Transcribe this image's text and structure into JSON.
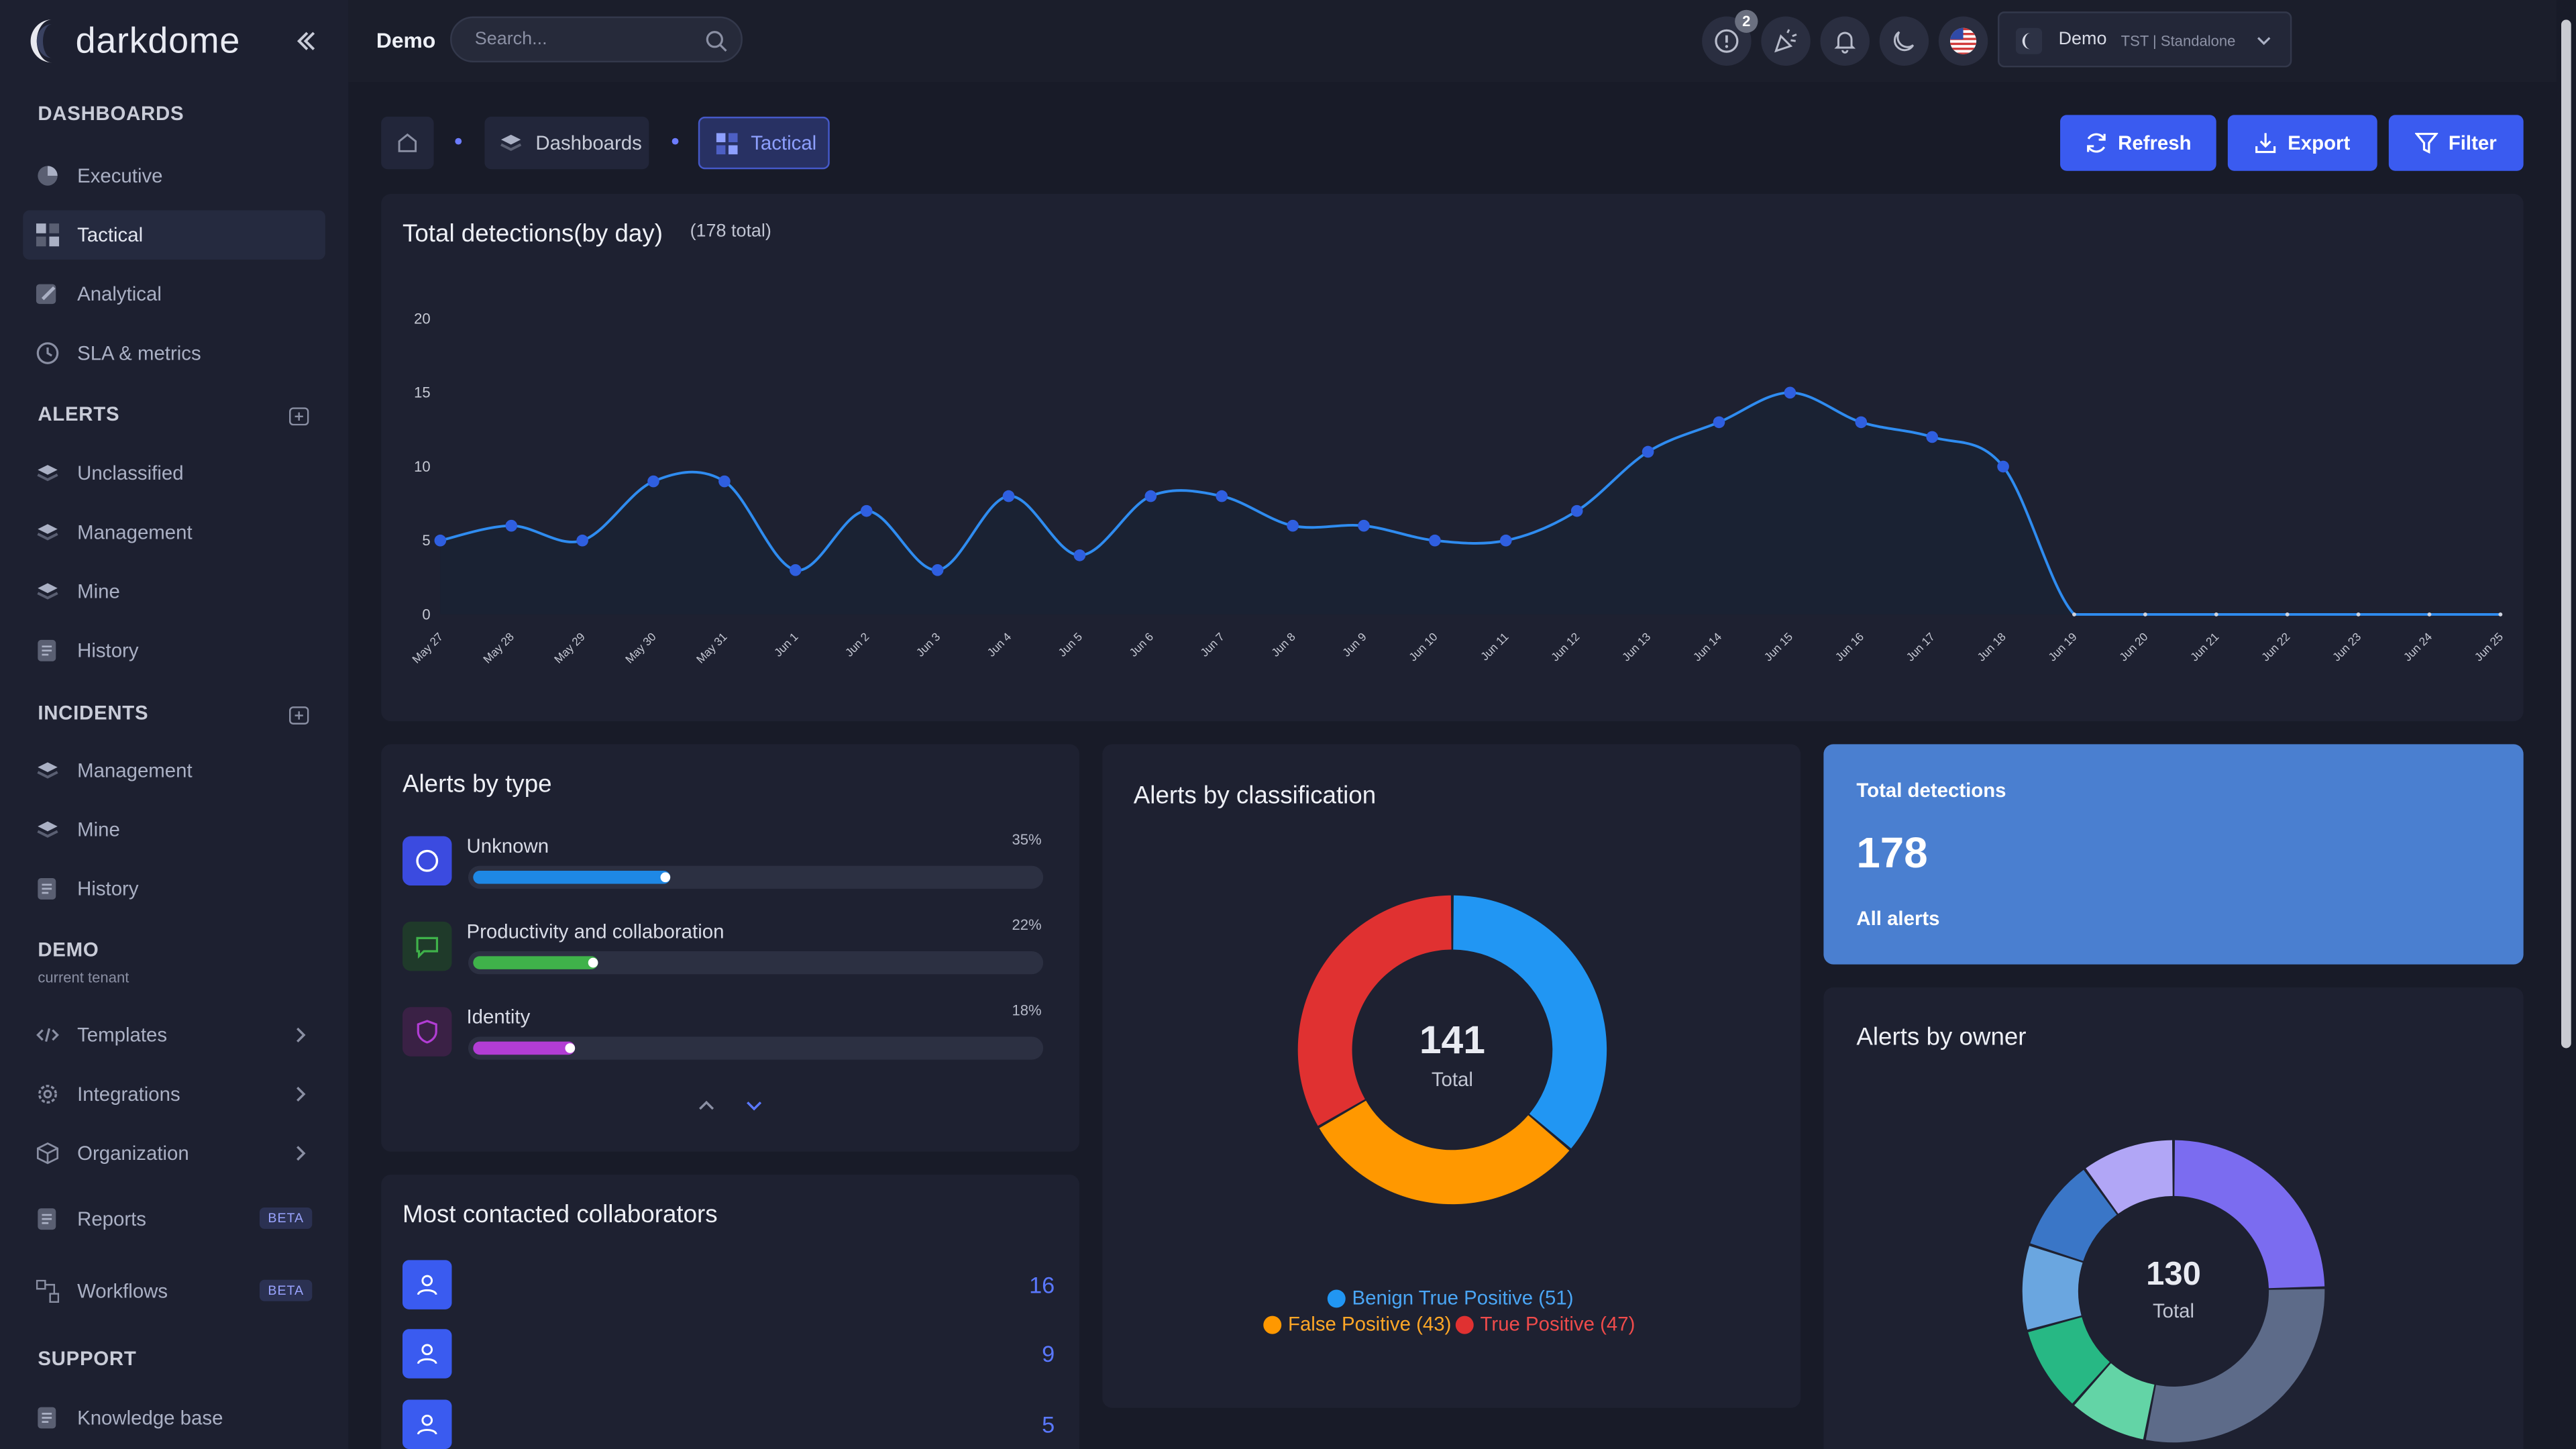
{
  "brand": {
    "name": "darkdome"
  },
  "sidebar": {
    "dashboards_title": "DASHBOARDS",
    "dashboards": [
      {
        "label": "Executive"
      },
      {
        "label": "Tactical"
      },
      {
        "label": "Analytical"
      },
      {
        "label": "SLA & metrics"
      }
    ],
    "alerts_title": "ALERTS",
    "alerts": [
      {
        "label": "Unclassified"
      },
      {
        "label": "Management"
      },
      {
        "label": "Mine"
      },
      {
        "label": "History"
      }
    ],
    "incidents_title": "INCIDENTS",
    "incidents": [
      {
        "label": "Management"
      },
      {
        "label": "Mine"
      },
      {
        "label": "History"
      }
    ],
    "tenant_title": "DEMO",
    "tenant_sub": "current tenant",
    "tenant_items": [
      {
        "label": "Templates"
      },
      {
        "label": "Integrations"
      },
      {
        "label": "Organization"
      },
      {
        "label": "Reports",
        "badge": "BETA"
      },
      {
        "label": "Workflows",
        "badge": "BETA"
      }
    ],
    "support_title": "SUPPORT",
    "support": [
      {
        "label": "Knowledge base"
      }
    ]
  },
  "topbar": {
    "title": "Demo",
    "search_placeholder": "Search...",
    "notification_count": "2",
    "tenant_name": "Demo",
    "tenant_meta": "TST | Standalone"
  },
  "breadcrumb": {
    "dashboards": "Dashboards",
    "tactical": "Tactical"
  },
  "actions": {
    "refresh": "Refresh",
    "export": "Export",
    "filter": "Filter"
  },
  "detections_chart": {
    "title": "Total detections(by day)",
    "total_note": "(178 total)"
  },
  "chart_data": [
    {
      "type": "area",
      "title": "Total detections(by day)",
      "x": [
        "May 27",
        "May 28",
        "May 29",
        "May 30",
        "May 31",
        "Jun 1",
        "Jun 2",
        "Jun 3",
        "Jun 4",
        "Jun 5",
        "Jun 6",
        "Jun 7",
        "Jun 8",
        "Jun 9",
        "Jun 10",
        "Jun 11",
        "Jun 12",
        "Jun 13",
        "Jun 14",
        "Jun 15",
        "Jun 16",
        "Jun 17",
        "Jun 18",
        "Jun 19",
        "Jun 20",
        "Jun 21",
        "Jun 22",
        "Jun 23",
        "Jun 24",
        "Jun 25"
      ],
      "values": [
        5,
        6,
        5,
        9,
        9,
        3,
        7,
        3,
        8,
        4,
        8,
        8,
        6,
        6,
        5,
        5,
        7,
        11,
        13,
        15,
        13,
        12,
        10,
        0,
        0,
        0,
        0,
        0,
        0,
        0
      ],
      "yticks": [
        0,
        5,
        10,
        15,
        20
      ],
      "ylim": [
        0,
        20
      ],
      "color": "#2f8cf0"
    },
    {
      "type": "pie",
      "title": "Alerts by classification",
      "center_value": "141",
      "center_label": "Total",
      "slices": [
        {
          "name": "Benign True Positive",
          "value": 51,
          "color": "#2196f3",
          "label": "Benign True Positive (51)"
        },
        {
          "name": "False Positive",
          "value": 43,
          "color": "#ff9800",
          "label": "False Positive (43)"
        },
        {
          "name": "True Positive",
          "value": 47,
          "color": "#e03131",
          "label": "True Positive (47)"
        }
      ]
    },
    {
      "type": "pie",
      "title": "Alerts by owner",
      "center_value": "130",
      "center_label": "Total",
      "slices": [
        {
          "value": 32,
          "color": "#7b6cf0"
        },
        {
          "value": 37,
          "color": "#5d6b89"
        },
        {
          "value": 11,
          "color": "#63d4a6"
        },
        {
          "value": 12,
          "color": "#27b884"
        },
        {
          "value": 12,
          "color": "#6aa6e0"
        },
        {
          "value": 13,
          "color": "#3a76c7"
        },
        {
          "value": 13,
          "color": "#b1a6f6"
        }
      ]
    }
  ],
  "alerts_by_type": {
    "title": "Alerts by type",
    "items": [
      {
        "label": "Unknown",
        "pct": "35%",
        "fraction": 0.35,
        "color": "#1e88e5"
      },
      {
        "label": "Productivity and collaboration",
        "pct": "22%",
        "fraction": 0.22,
        "color": "#3fb24a"
      },
      {
        "label": "Identity",
        "pct": "18%",
        "fraction": 0.18,
        "color": "#b23dd4"
      }
    ]
  },
  "classification": {
    "title": "Alerts by classification",
    "center_value": "141",
    "center_label": "Total",
    "legend": [
      "Benign True Positive (51)",
      "False Positive (43)",
      "True Positive (47)"
    ]
  },
  "total_card": {
    "label": "Total detections",
    "value": "178",
    "sub": "All alerts"
  },
  "owner": {
    "title": "Alerts by owner",
    "center_value": "130",
    "center_label": "Total"
  },
  "collaborators": {
    "title": "Most contacted collaborators",
    "counts": [
      "16",
      "9",
      "5"
    ]
  }
}
